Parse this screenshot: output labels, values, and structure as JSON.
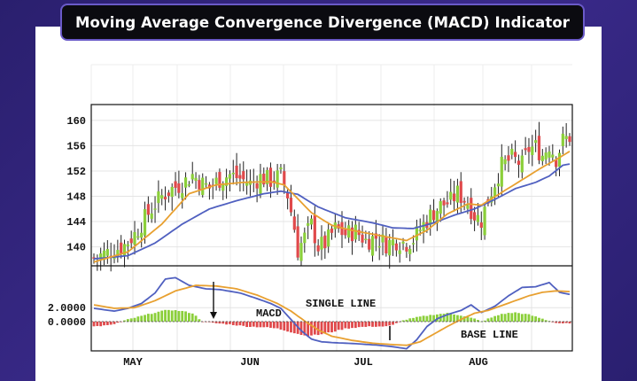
{
  "chart_data": {
    "type": "candlestick+macd",
    "title": "Moving Average Convergence Divergence (MACD) Indicator",
    "colors": {
      "up": "#8bcf3a",
      "down": "#e0494b",
      "ma_fast": "#e8a030",
      "ma_slow": "#5060c0",
      "frame": "#111111"
    },
    "price_axis": {
      "ticks": [
        "160",
        "156",
        "152",
        "148",
        "144",
        "140"
      ],
      "tick_values": [
        160,
        156,
        152,
        148,
        144,
        140
      ],
      "ylim": [
        137,
        162.5
      ]
    },
    "macd_axis": {
      "ticks": [
        "2.0000",
        "0.0000"
      ],
      "tick_values": [
        2.0,
        0.0
      ],
      "ylim": [
        -4.2,
        8.0
      ]
    },
    "months": [
      "MAY",
      "JUN",
      "JUL",
      "AUG"
    ],
    "annotations": {
      "macd": "MACD",
      "signal": "SINGLE LINE",
      "base": "BASE LINE"
    },
    "price_anchors": [
      [
        0,
        138.2
      ],
      [
        3,
        138.9
      ],
      [
        6,
        139.5
      ],
      [
        9,
        140.3
      ],
      [
        12,
        142.0
      ],
      [
        15,
        144.5
      ],
      [
        18,
        146.8
      ],
      [
        20,
        148.0
      ],
      [
        23,
        149.2
      ],
      [
        26,
        150.0
      ],
      [
        29,
        151.4
      ],
      [
        32,
        150.0
      ],
      [
        34,
        149.3
      ],
      [
        37,
        150.7
      ],
      [
        40,
        151.4
      ],
      [
        43,
        150.8
      ],
      [
        46,
        150.0
      ],
      [
        49,
        151.0
      ],
      [
        52,
        150.5
      ],
      [
        55,
        151.3
      ],
      [
        57,
        148.2
      ],
      [
        59,
        143.0
      ],
      [
        60,
        139.5
      ],
      [
        62,
        141.5
      ],
      [
        64,
        143.5
      ],
      [
        66,
        140.0
      ],
      [
        68,
        140.5
      ],
      [
        71,
        142.8
      ],
      [
        74,
        142.0
      ],
      [
        77,
        142.5
      ],
      [
        80,
        141.0
      ],
      [
        83,
        141.5
      ],
      [
        86,
        140.5
      ],
      [
        89,
        141.0
      ],
      [
        92,
        140.6
      ],
      [
        94,
        141.2
      ],
      [
        96,
        142.8
      ],
      [
        99,
        145.0
      ],
      [
        102,
        146.5
      ],
      [
        105,
        147.2
      ],
      [
        107,
        148.5
      ],
      [
        110,
        147.0
      ],
      [
        112,
        145.0
      ],
      [
        114,
        144.2
      ],
      [
        116,
        147.5
      ],
      [
        118,
        150.2
      ],
      [
        120,
        152.8
      ],
      [
        123,
        154.0
      ],
      [
        126,
        153.0
      ],
      [
        128,
        155.5
      ],
      [
        130,
        155.8
      ],
      [
        132,
        154.5
      ],
      [
        134,
        156.2
      ],
      [
        136,
        154.0
      ],
      [
        138,
        156.8
      ],
      [
        140,
        157.4
      ]
    ],
    "macd_anchors": [
      [
        0,
        1.9
      ],
      [
        6,
        1.5
      ],
      [
        10,
        1.9
      ],
      [
        14,
        2.6
      ],
      [
        18,
        4.1
      ],
      [
        21,
        6.1
      ],
      [
        24,
        6.3
      ],
      [
        28,
        5.2
      ],
      [
        33,
        4.7
      ],
      [
        37,
        4.6
      ],
      [
        43,
        4.1
      ],
      [
        48,
        3.3
      ],
      [
        52,
        2.6
      ],
      [
        55,
        1.9
      ],
      [
        58,
        0.3
      ],
      [
        61,
        -1.3
      ],
      [
        64,
        -2.5
      ],
      [
        67,
        -2.9
      ],
      [
        70,
        -3.0
      ],
      [
        74,
        -3.1
      ],
      [
        78,
        -3.2
      ],
      [
        84,
        -3.4
      ],
      [
        88,
        -3.6
      ],
      [
        92,
        -3.9
      ],
      [
        95,
        -2.6
      ],
      [
        98,
        -0.7
      ],
      [
        101,
        0.4
      ],
      [
        104,
        1.0
      ],
      [
        108,
        1.6
      ],
      [
        111,
        2.4
      ],
      [
        114,
        1.3
      ],
      [
        118,
        2.2
      ],
      [
        122,
        3.7
      ],
      [
        126,
        4.9
      ],
      [
        130,
        5.0
      ],
      [
        134,
        5.6
      ],
      [
        137,
        4.2
      ],
      [
        140,
        3.9
      ]
    ],
    "signal_anchors": [
      [
        0,
        2.4
      ],
      [
        6,
        1.9
      ],
      [
        12,
        2.0
      ],
      [
        18,
        3.0
      ],
      [
        24,
        4.4
      ],
      [
        30,
        5.2
      ],
      [
        36,
        5.1
      ],
      [
        42,
        4.7
      ],
      [
        48,
        3.8
      ],
      [
        54,
        2.6
      ],
      [
        58,
        1.5
      ],
      [
        62,
        0.1
      ],
      [
        66,
        -1.2
      ],
      [
        70,
        -2.1
      ],
      [
        76,
        -2.7
      ],
      [
        82,
        -3.1
      ],
      [
        88,
        -3.3
      ],
      [
        92,
        -3.4
      ],
      [
        96,
        -2.9
      ],
      [
        100,
        -1.8
      ],
      [
        104,
        -0.7
      ],
      [
        108,
        0.3
      ],
      [
        112,
        1.2
      ],
      [
        116,
        1.6
      ],
      [
        120,
        2.3
      ],
      [
        124,
        3.0
      ],
      [
        128,
        3.7
      ],
      [
        132,
        4.2
      ],
      [
        136,
        4.4
      ],
      [
        140,
        4.3
      ]
    ],
    "hist_anchors": [
      [
        0,
        -0.7
      ],
      [
        5,
        -0.5
      ],
      [
        10,
        0.3
      ],
      [
        14,
        0.8
      ],
      [
        18,
        1.3
      ],
      [
        22,
        1.7
      ],
      [
        26,
        1.5
      ],
      [
        29,
        1.2
      ],
      [
        32,
        0.0
      ],
      [
        35,
        -0.2
      ],
      [
        40,
        -0.4
      ],
      [
        45,
        -0.7
      ],
      [
        50,
        -0.8
      ],
      [
        54,
        -1.0
      ],
      [
        58,
        -1.5
      ],
      [
        62,
        -2.0
      ],
      [
        66,
        -1.9
      ],
      [
        70,
        -1.5
      ],
      [
        74,
        -1.0
      ],
      [
        78,
        -0.8
      ],
      [
        82,
        -0.7
      ],
      [
        86,
        -0.7
      ],
      [
        88,
        -0.5
      ],
      [
        90,
        0.0
      ],
      [
        92,
        0.3
      ],
      [
        96,
        0.7
      ],
      [
        100,
        1.0
      ],
      [
        104,
        1.2
      ],
      [
        108,
        0.9
      ],
      [
        112,
        0.4
      ],
      [
        114,
        0.0
      ],
      [
        116,
        0.4
      ],
      [
        120,
        1.1
      ],
      [
        124,
        1.3
      ],
      [
        128,
        1.0
      ],
      [
        132,
        0.4
      ],
      [
        136,
        -0.2
      ],
      [
        140,
        -0.3
      ]
    ],
    "ma_fast_anchors": [
      [
        0,
        137.6
      ],
      [
        10,
        139.2
      ],
      [
        20,
        143.6
      ],
      [
        28,
        148.4
      ],
      [
        36,
        149.8
      ],
      [
        44,
        150.2
      ],
      [
        52,
        150.3
      ],
      [
        56,
        149.8
      ],
      [
        60,
        147.6
      ],
      [
        64,
        145.4
      ],
      [
        70,
        143.4
      ],
      [
        76,
        142.6
      ],
      [
        84,
        141.8
      ],
      [
        92,
        141.0
      ],
      [
        98,
        142.6
      ],
      [
        104,
        145.2
      ],
      [
        110,
        146.8
      ],
      [
        114,
        146.6
      ],
      [
        120,
        148.6
      ],
      [
        126,
        150.6
      ],
      [
        132,
        152.6
      ],
      [
        136,
        153.8
      ],
      [
        140,
        155.1
      ]
    ],
    "ma_slow_anchors": [
      [
        0,
        138.1
      ],
      [
        10,
        138.6
      ],
      [
        18,
        140.6
      ],
      [
        26,
        143.6
      ],
      [
        34,
        146.0
      ],
      [
        42,
        147.3
      ],
      [
        50,
        148.4
      ],
      [
        55,
        148.8
      ],
      [
        60,
        148.3
      ],
      [
        66,
        146.3
      ],
      [
        74,
        144.6
      ],
      [
        82,
        143.8
      ],
      [
        88,
        143.0
      ],
      [
        94,
        142.9
      ],
      [
        100,
        143.8
      ],
      [
        106,
        145.0
      ],
      [
        112,
        146.0
      ],
      [
        118,
        147.5
      ],
      [
        124,
        149.2
      ],
      [
        130,
        150.2
      ],
      [
        134,
        151.2
      ],
      [
        138,
        152.9
      ],
      [
        140,
        153.1
      ]
    ]
  }
}
